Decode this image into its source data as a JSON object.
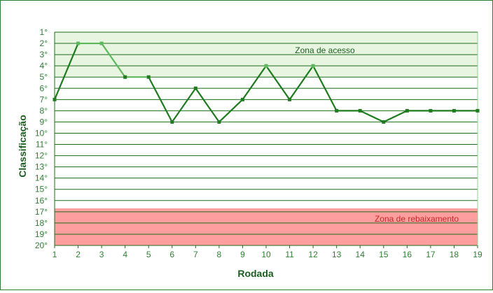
{
  "chart_data": {
    "type": "line",
    "xlabel": "Rodada",
    "ylabel": "Classificação",
    "x": [
      1,
      2,
      3,
      4,
      5,
      6,
      7,
      8,
      9,
      10,
      11,
      12,
      13,
      14,
      15,
      16,
      17,
      18,
      19
    ],
    "x_ticks": [
      "1",
      "2",
      "3",
      "4",
      "5",
      "6",
      "7",
      "8",
      "9",
      "10",
      "11",
      "12",
      "13",
      "14",
      "15",
      "16",
      "17",
      "18",
      "19"
    ],
    "y_ticks": [
      "1°",
      "2°",
      "3°",
      "4°",
      "5°",
      "6°",
      "7°",
      "8°",
      "9°",
      "10°",
      "11°",
      "12°",
      "13°",
      "14°",
      "15°",
      "16°",
      "17°",
      "18°",
      "19°",
      "20°"
    ],
    "ylim": [
      1,
      20
    ],
    "y_inverted": true,
    "grid": true,
    "series": [
      {
        "values": [
          7,
          2,
          2,
          5,
          5,
          9,
          6,
          9,
          7,
          4,
          7,
          4,
          8,
          8,
          9,
          8,
          8,
          8,
          8
        ]
      }
    ],
    "zones": [
      {
        "label": "Zona de acesso",
        "from": 1,
        "to": 5,
        "color": "#e8f5e0"
      },
      {
        "label": "Zona de rebaixamento",
        "from": 16.7,
        "to": 20,
        "color": "#ff9e9e"
      }
    ],
    "colors": {
      "line": "#1e7b1e",
      "line_in_zone": "#5cb85c",
      "grid": "#1e6b1e",
      "frame": "#2e7d32"
    }
  }
}
